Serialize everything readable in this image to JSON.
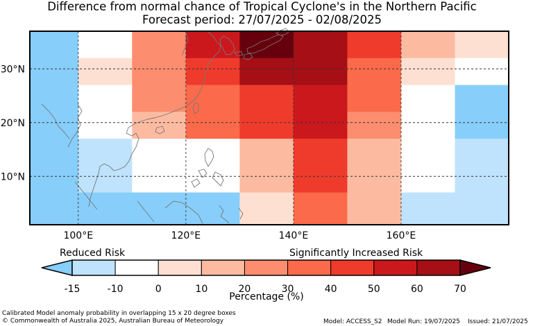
{
  "title": "Difference from normal chance of Tropical Cyclone's in the Northern Pacific",
  "subtitle": "Forecast period: 27/07/2025 - 02/08/2025",
  "map": {
    "x_ticks": [
      "100°E",
      "120°E",
      "140°E",
      "160°E"
    ],
    "y_ticks": [
      "30°N",
      "20°N",
      "10°N"
    ],
    "grid": [
      [
        "#87cefa",
        "#ffffff",
        "#fc8d6e",
        "#cb181d",
        "#67000d",
        "#a50f15",
        "#ef3b2c",
        "#fcbba1",
        "#fee0d2"
      ],
      [
        "#87cefa",
        "#fee0d2",
        "#fc8d6e",
        "#ef3b2c",
        "#a50f15",
        "#a50f15",
        "#fb6a4a",
        "#fee0d2",
        "#ffffff"
      ],
      [
        "#87cefa",
        "#ffffff",
        "#fc8d6e",
        "#fb6a4a",
        "#ef3b2c",
        "#cb181d",
        "#fb6a4a",
        "#ffffff",
        "#87cefa"
      ],
      [
        "#87cefa",
        "#ffffff",
        "#fcbba1",
        "#fb6a4a",
        "#ef3b2c",
        "#cb181d",
        "#fc8d6e",
        "#ffffff",
        "#87cefa"
      ],
      [
        "#87cefa",
        "#bfe3fc",
        "#ffffff",
        "#ffffff",
        "#fcbba1",
        "#ef3b2c",
        "#fcbba1",
        "#ffffff",
        "#bfe3fc"
      ],
      [
        "#87cefa",
        "#bfe3fc",
        "#ffffff",
        "#ffffff",
        "#fcbba1",
        "#ef3b2c",
        "#fcbba1",
        "#ffffff",
        "#bfe3fc"
      ],
      [
        "#87cefa",
        "#87cefa",
        "#87cefa",
        "#87cefa",
        "#fee0d2",
        "#fb6a4a",
        "#fcbba1",
        "#bfe3fc",
        "#bfe3fc"
      ]
    ]
  },
  "legend": {
    "reduced_label": "Reduced Risk",
    "increased_label": "Significantly Increased Risk",
    "ticks": [
      "-15",
      "-10",
      "0",
      "10",
      "20",
      "30",
      "40",
      "50",
      "60",
      "70"
    ],
    "colors": [
      "#bfe3fc",
      "#ffffff",
      "#fee0d2",
      "#fcbba1",
      "#fc8d6e",
      "#fb6a4a",
      "#ef3b2c",
      "#cb181d",
      "#a50f15"
    ],
    "under_color": "#87cefa",
    "over_color": "#67000d",
    "unit_label": "Percentage (%)"
  },
  "footer": {
    "description": "Calibrated Model anomaly probability in overlapping 15 x 20 degree boxes",
    "copyright": "© Commonwealth of Australia 2025, Australian Bureau of Meteorology",
    "model": "Model: ACCESS_S2",
    "model_run": "Model Run: 19/07/2025",
    "issued": "Issued: 21/07/2025"
  }
}
